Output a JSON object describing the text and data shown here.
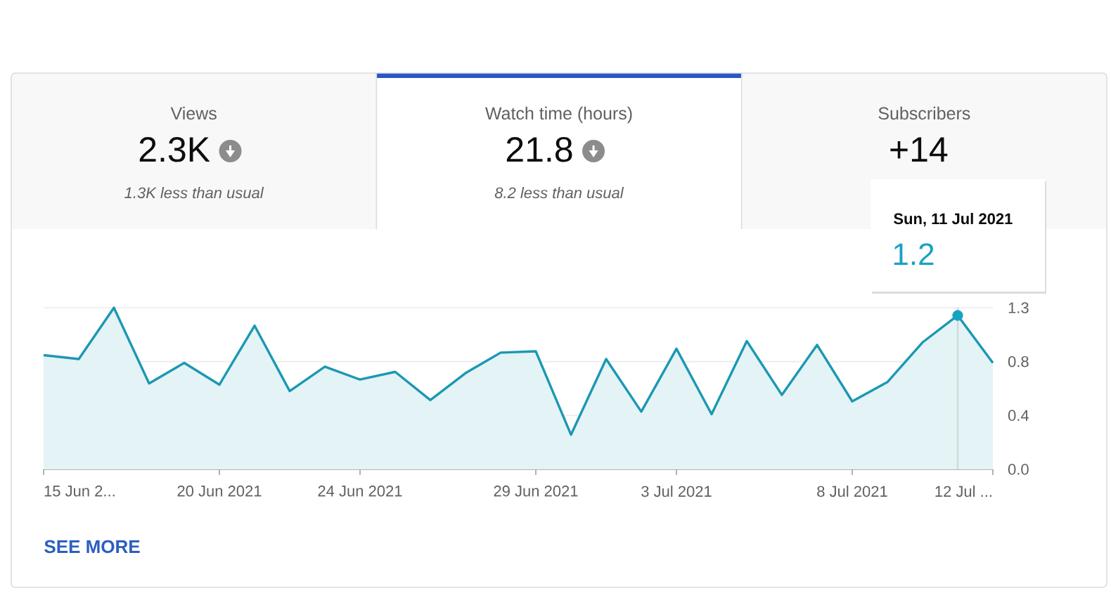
{
  "chart_data": [
    {
      "type": "other",
      "title": "Views",
      "annotations": [
        "2.3K",
        "1.3K less than usual"
      ]
    },
    {
      "type": "area",
      "title": "Watch time (hours)",
      "x": [
        "2021-06-15",
        "2021-06-16",
        "2021-06-17",
        "2021-06-18",
        "2021-06-19",
        "2021-06-20",
        "2021-06-21",
        "2021-06-22",
        "2021-06-23",
        "2021-06-24",
        "2021-06-25",
        "2021-06-26",
        "2021-06-27",
        "2021-06-28",
        "2021-06-29",
        "2021-06-30",
        "2021-07-01",
        "2021-07-02",
        "2021-07-03",
        "2021-07-04",
        "2021-07-05",
        "2021-07-06",
        "2021-07-07",
        "2021-07-08",
        "2021-07-09",
        "2021-07-10",
        "2021-07-11",
        "2021-07-12"
      ],
      "series": [
        {
          "type": "area",
          "color": "#1b98b3",
          "values": [
            0.89,
            0.86,
            1.26,
            0.67,
            0.83,
            0.66,
            1.12,
            0.61,
            0.8,
            0.7,
            0.76,
            0.54,
            0.75,
            0.91,
            0.92,
            0.27,
            0.86,
            0.45,
            0.94,
            0.43,
            1.0,
            0.58,
            0.97,
            0.53,
            0.68,
            0.99,
            1.2,
            0.83
          ]
        },
        {
          "type": "scatter",
          "x": [
            "2021-07-11"
          ],
          "values": [
            1.2
          ],
          "color": "#17a2c2",
          "marker": "circle"
        }
      ],
      "xlim": [
        "2021-06-15",
        "2021-07-12"
      ],
      "xticks": [
        {
          "value": "2021-06-15",
          "label": "15 Jun 2..."
        },
        {
          "value": "2021-06-20",
          "label": "20 Jun 2021"
        },
        {
          "value": "2021-06-24",
          "label": "24 Jun 2021"
        },
        {
          "value": "2021-06-29",
          "label": "29 Jun 2021"
        },
        {
          "value": "2021-07-03",
          "label": "3 Jul 2021"
        },
        {
          "value": "2021-07-08",
          "label": "8 Jul 2021"
        },
        {
          "value": "2021-07-12",
          "label": "12 Jul ..."
        }
      ],
      "ylim": [
        0,
        1.26
      ],
      "yticks": [
        {
          "value": 0,
          "label": "0.0"
        },
        {
          "value": 0.42,
          "label": "0.4"
        },
        {
          "value": 0.84,
          "label": "0.8"
        },
        {
          "value": 1.26,
          "label": "1.3"
        }
      ],
      "grid": "y",
      "ref_lines": [
        {
          "axis": "x",
          "value": "2021-07-11",
          "color": "#cfd8dc"
        }
      ],
      "annotations": [
        "21.8",
        "8.2 less than usual",
        "Sun, 11 Jul 2021",
        {
          "text": "1.2",
          "x": "2021-07-11",
          "y": 1.2
        },
        "SEE MORE"
      ]
    },
    {
      "type": "other",
      "title": "Subscribers",
      "annotations": [
        "+14"
      ]
    }
  ]
}
